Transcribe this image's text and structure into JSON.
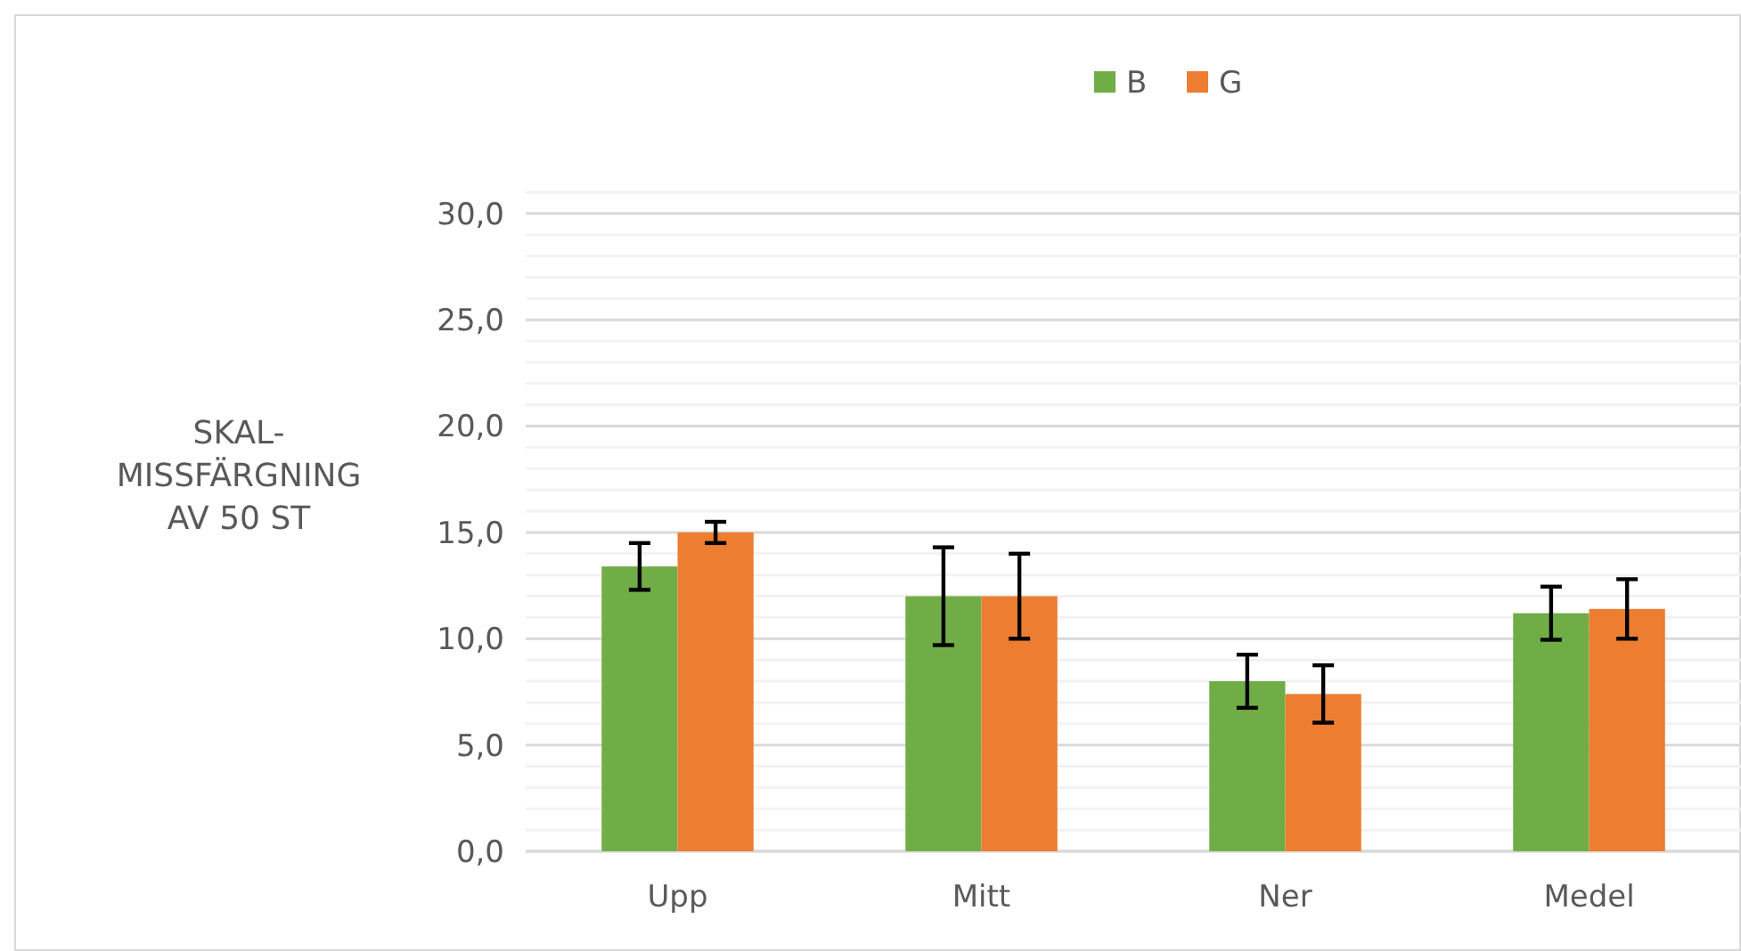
{
  "chart_data": {
    "type": "bar",
    "ylabel": "SKAL-MISSFÄRGNING AV 50 ST",
    "categories": [
      "Upp",
      "Mitt",
      "Ner",
      "Medel"
    ],
    "series": [
      {
        "name": "B",
        "color": "#70ad47",
        "values": [
          13.4,
          12.0,
          8.0,
          11.2
        ],
        "errors": [
          1.1,
          2.3,
          1.25,
          1.25
        ]
      },
      {
        "name": "G",
        "color": "#ed7d31",
        "values": [
          15.0,
          12.0,
          7.4,
          11.4
        ],
        "errors": [
          0.5,
          2.0,
          1.35,
          1.4
        ]
      }
    ],
    "ylim": [
      0,
      31
    ],
    "yticks": [
      {
        "value": 0,
        "label": "0,0"
      },
      {
        "value": 1,
        "label": null
      },
      {
        "value": 2,
        "label": null
      },
      {
        "value": 3,
        "label": null
      },
      {
        "value": 4,
        "label": null
      },
      {
        "value": 5,
        "label": "5,0"
      },
      {
        "value": 6,
        "label": null
      },
      {
        "value": 7,
        "label": null
      },
      {
        "value": 8,
        "label": null
      },
      {
        "value": 9,
        "label": null
      },
      {
        "value": 10,
        "label": "10,0"
      },
      {
        "value": 11,
        "label": null
      },
      {
        "value": 12,
        "label": null
      },
      {
        "value": 13,
        "label": null
      },
      {
        "value": 14,
        "label": null
      },
      {
        "value": 15,
        "label": "15,0"
      },
      {
        "value": 16,
        "label": null
      },
      {
        "value": 17,
        "label": null
      },
      {
        "value": 18,
        "label": null
      },
      {
        "value": 19,
        "label": null
      },
      {
        "value": 20,
        "label": "20,0"
      },
      {
        "value": 21,
        "label": null
      },
      {
        "value": 22,
        "label": null
      },
      {
        "value": 23,
        "label": null
      },
      {
        "value": 24,
        "label": null
      },
      {
        "value": 25,
        "label": "25,0"
      },
      {
        "value": 26,
        "label": null
      },
      {
        "value": 27,
        "label": null
      },
      {
        "value": 28,
        "label": null
      },
      {
        "value": 29,
        "label": null
      },
      {
        "value": 30,
        "label": "30,0"
      },
      {
        "value": 31,
        "label": null
      }
    ],
    "grid": "y",
    "legend": "top"
  }
}
